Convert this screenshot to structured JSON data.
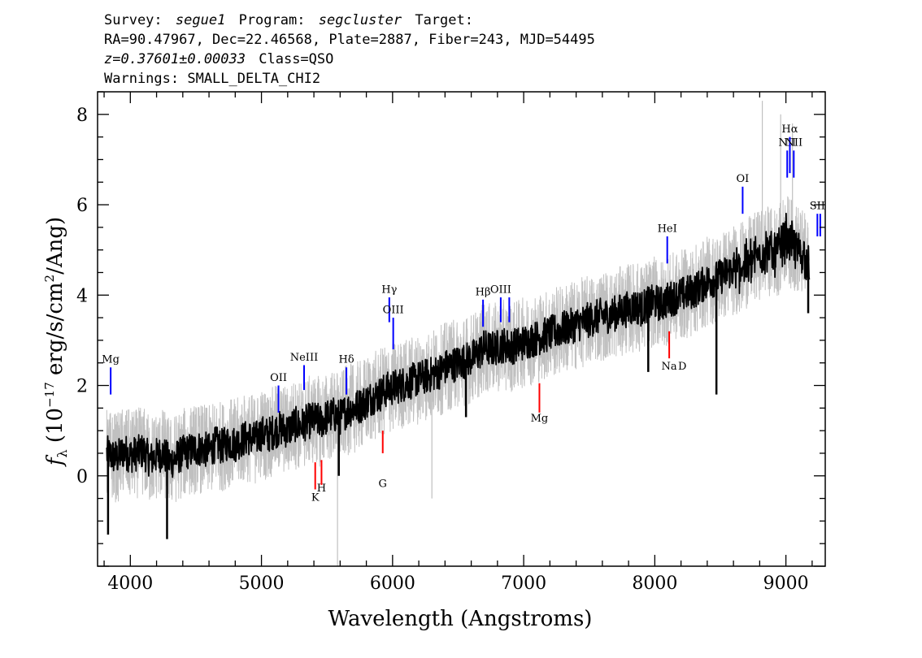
{
  "header": {
    "line1": {
      "survey_key": "Survey:",
      "survey": "segue1",
      "program_key": "Program:",
      "program": "segcluster",
      "target_key": "Target:"
    },
    "line2": "RA=90.47967, Dec=22.46568, Plate=2887, Fiber=243, MJD=54495",
    "line3": {
      "redshift": "z=0.37601±0.00033",
      "class": "Class=QSO"
    },
    "line4": "Warnings: SMALL_DELTA_CHI2"
  },
  "colors": {
    "flux": "#000000",
    "flux_error": "#c0c0c0",
    "emission_line": "#0000ff",
    "absorption_line": "#ff0000",
    "axis": "#000000"
  },
  "chart_data": {
    "type": "line",
    "xlabel": "Wavelength (Angstroms)",
    "ylabel_parts": [
      "f",
      "λ",
      " (10",
      "−17",
      " erg/s/cm",
      "2",
      "/Ang)"
    ],
    "xlim": [
      3750,
      9300
    ],
    "ylim": [
      -2.0,
      8.5
    ],
    "xticks": [
      4000,
      5000,
      6000,
      7000,
      8000,
      9000
    ],
    "xtick_labels": [
      "4000",
      "5000",
      "6000",
      "7000",
      "8000",
      "9000"
    ],
    "yticks": [
      0,
      2,
      4,
      6,
      8
    ],
    "ytick_labels": [
      "0",
      "2",
      "4",
      "6",
      "8"
    ],
    "x_minor_step": 200,
    "y_minor_step": 0.5,
    "grid": false,
    "series": [
      {
        "role": "flux",
        "x": [
          3820,
          3850,
          3900,
          3950,
          4000,
          4050,
          4100,
          4150,
          4200,
          4250,
          4300,
          4350,
          4400,
          4450,
          4500,
          4550,
          4600,
          4650,
          4700,
          4750,
          4800,
          4850,
          4900,
          4950,
          5000,
          5050,
          5100,
          5150,
          5200,
          5250,
          5300,
          5350,
          5400,
          5450,
          5500,
          5550,
          5600,
          5650,
          5700,
          5750,
          5800,
          5850,
          5900,
          5950,
          6000,
          6050,
          6100,
          6150,
          6200,
          6250,
          6300,
          6350,
          6400,
          6450,
          6500,
          6550,
          6600,
          6650,
          6700,
          6750,
          6800,
          6850,
          6900,
          6950,
          7000,
          7050,
          7100,
          7150,
          7200,
          7250,
          7300,
          7350,
          7400,
          7450,
          7500,
          7550,
          7600,
          7650,
          7700,
          7750,
          7800,
          7850,
          7900,
          7950,
          8000,
          8050,
          8100,
          8150,
          8200,
          8250,
          8300,
          8350,
          8400,
          8450,
          8500,
          8550,
          8600,
          8650,
          8700,
          8750,
          8800,
          8850,
          8900,
          8950,
          9000,
          9050,
          9100,
          9150,
          9180
        ],
        "values": [
          0.5,
          0.45,
          0.4,
          0.55,
          0.45,
          0.5,
          0.55,
          0.35,
          0.45,
          0.5,
          0.3,
          0.4,
          0.5,
          0.55,
          0.6,
          0.6,
          0.55,
          0.7,
          0.65,
          0.75,
          0.7,
          0.8,
          0.85,
          0.8,
          0.95,
          0.9,
          1.0,
          1.05,
          1.0,
          1.15,
          1.1,
          1.2,
          1.25,
          1.2,
          1.3,
          1.35,
          1.3,
          1.45,
          1.5,
          1.55,
          1.65,
          1.75,
          1.8,
          1.9,
          1.95,
          2.0,
          2.05,
          2.1,
          2.15,
          2.2,
          2.25,
          2.3,
          2.4,
          2.45,
          2.5,
          2.55,
          2.6,
          2.7,
          2.85,
          2.8,
          2.85,
          2.9,
          2.85,
          2.9,
          2.95,
          3.0,
          3.05,
          3.1,
          3.15,
          3.2,
          3.25,
          3.3,
          3.35,
          3.4,
          3.45,
          3.5,
          3.55,
          3.55,
          3.6,
          3.65,
          3.7,
          3.75,
          3.7,
          3.8,
          3.85,
          3.8,
          3.9,
          3.95,
          4.0,
          4.05,
          4.1,
          4.2,
          4.3,
          4.35,
          4.4,
          4.5,
          4.55,
          4.6,
          4.7,
          4.8,
          4.9,
          5.0,
          4.95,
          5.0,
          5.3,
          5.1,
          5.0,
          4.8,
          4.6
        ],
        "noise": 0.4
      },
      {
        "role": "flux_error",
        "x": [
          3820,
          3850,
          3900,
          3950,
          4000,
          4050,
          4100,
          4150,
          4200,
          4250,
          4300,
          4350,
          4400,
          4450,
          4500,
          4550,
          4600,
          4650,
          4700,
          4750,
          4800,
          4850,
          4900,
          4950,
          5000,
          5050,
          5100,
          5150,
          5200,
          5250,
          5300,
          5350,
          5400,
          5450,
          5500,
          5550,
          5600,
          5650,
          5700,
          5750,
          5800,
          5850,
          5900,
          5950,
          6000,
          6050,
          6100,
          6150,
          6200,
          6250,
          6300,
          6350,
          6400,
          6450,
          6500,
          6550,
          6600,
          6650,
          6700,
          6750,
          6800,
          6850,
          6900,
          6950,
          7000,
          7050,
          7100,
          7150,
          7200,
          7250,
          7300,
          7350,
          7400,
          7450,
          7500,
          7550,
          7600,
          7650,
          7700,
          7750,
          7800,
          7850,
          7900,
          7950,
          8000,
          8050,
          8100,
          8150,
          8200,
          8250,
          8300,
          8350,
          8400,
          8450,
          8500,
          8550,
          8600,
          8650,
          8700,
          8750,
          8800,
          8850,
          8900,
          8950,
          9000,
          9050,
          9100,
          9150,
          9180
        ],
        "values": [
          0.5,
          0.45,
          0.4,
          0.55,
          0.45,
          0.5,
          0.55,
          0.35,
          0.45,
          0.5,
          0.3,
          0.4,
          0.5,
          0.55,
          0.6,
          0.6,
          0.55,
          0.7,
          0.65,
          0.75,
          0.7,
          0.8,
          0.85,
          0.8,
          0.95,
          0.9,
          1.0,
          1.05,
          1.0,
          1.15,
          1.1,
          1.2,
          1.25,
          1.2,
          1.3,
          1.35,
          1.3,
          1.45,
          1.5,
          1.55,
          1.65,
          1.75,
          1.8,
          1.9,
          1.95,
          2.0,
          2.05,
          2.1,
          2.15,
          2.2,
          2.25,
          2.3,
          2.4,
          2.45,
          2.5,
          2.55,
          2.6,
          2.7,
          2.85,
          2.8,
          2.85,
          2.9,
          2.85,
          2.9,
          2.95,
          3.0,
          3.05,
          3.1,
          3.15,
          3.2,
          3.25,
          3.3,
          3.35,
          3.4,
          3.45,
          3.5,
          3.55,
          3.55,
          3.6,
          3.65,
          3.7,
          3.75,
          3.7,
          3.8,
          3.85,
          3.8,
          3.9,
          3.95,
          4.0,
          4.05,
          4.1,
          4.2,
          4.3,
          4.35,
          4.4,
          4.5,
          4.55,
          4.6,
          4.7,
          4.8,
          4.9,
          5.0,
          4.95,
          5.0,
          5.3,
          5.1,
          5.0,
          4.8,
          4.6
        ],
        "noise": 1.0
      }
    ],
    "dips": [
      {
        "x": 3830,
        "y": -1.3
      },
      {
        "x": 4280,
        "y": -1.4
      },
      {
        "x": 5590,
        "y": 0.0
      },
      {
        "x": 6560,
        "y": 1.3
      },
      {
        "x": 7950,
        "y": 2.3
      },
      {
        "x": 8470,
        "y": 1.8
      },
      {
        "x": 9170,
        "y": 3.6
      }
    ],
    "spikes": [
      {
        "x": 5580,
        "y": -2.0
      },
      {
        "x": 6300,
        "y": -0.5
      },
      {
        "x": 8820,
        "y": 8.3
      },
      {
        "x": 8960,
        "y": 8.0
      },
      {
        "x": 9050,
        "y": 7.8
      }
    ],
    "emission_lines": [
      {
        "label": "Mg",
        "x": 3850,
        "y1": 1.8,
        "y2": 2.4,
        "ly": 2.5
      },
      {
        "label": "OII",
        "x": 5130,
        "y1": 1.4,
        "y2": 2.0,
        "ly": 2.1
      },
      {
        "label": "NeIII",
        "x": 5325,
        "y1": 1.9,
        "y2": 2.45,
        "ly": 2.55
      },
      {
        "label": "Hδ",
        "x": 5648,
        "y1": 1.8,
        "y2": 2.4,
        "ly": 2.5
      },
      {
        "label": "Hγ",
        "x": 5975,
        "y1": 3.4,
        "y2": 3.95,
        "ly": 4.05
      },
      {
        "label": "OIII",
        "x": 6005,
        "y1": 2.8,
        "y2": 3.5,
        "ly": 3.6
      },
      {
        "label": "Hβ",
        "x": 6690,
        "y1": 3.3,
        "y2": 3.9,
        "ly": 4.0
      },
      {
        "label": "OIII",
        "x": 6825,
        "y1": 3.4,
        "y2": 3.95,
        "ly": 4.05
      },
      {
        "label": "OIII",
        "x": 6890,
        "y1": 3.4,
        "y2": 3.95,
        "ly": -99
      },
      {
        "label": "HeI",
        "x": 8095,
        "y1": 4.7,
        "y2": 5.3,
        "ly": 5.4
      },
      {
        "label": "OI",
        "x": 8670,
        "y1": 5.8,
        "y2": 6.4,
        "ly": 6.5
      },
      {
        "label": "NII",
        "x": 9010,
        "y1": 6.6,
        "y2": 7.2,
        "ly": 7.3
      },
      {
        "label": "Hα",
        "x": 9030,
        "y1": 6.7,
        "y2": 7.5,
        "ly": 7.6
      },
      {
        "label": "NII",
        "x": 9060,
        "y1": 6.6,
        "y2": 7.2,
        "ly": 7.3
      },
      {
        "label": "SII",
        "x": 9240,
        "y1": 5.3,
        "y2": 5.8,
        "ly": 5.9
      },
      {
        "label": "SII",
        "x": 9262,
        "y1": 5.3,
        "y2": 5.8,
        "ly": -99
      }
    ],
    "absorption_lines": [
      {
        "label": "K",
        "x": 5410,
        "y1": -0.3,
        "y2": 0.3,
        "ly": -0.55
      },
      {
        "label": "H",
        "x": 5458,
        "y1": -0.2,
        "y2": 0.35,
        "ly": -0.35
      },
      {
        "label": "G",
        "x": 5925,
        "y1": 0.5,
        "y2": 1.0,
        "ly": -0.25
      },
      {
        "label": "Mg",
        "x": 7120,
        "y1": 1.4,
        "y2": 2.05,
        "ly": 1.2
      },
      {
        "label": "Na",
        "x": 8110,
        "y1": 2.6,
        "y2": 3.2,
        "ly": 2.35
      },
      {
        "label": "D",
        "x": 8210,
        "y1": -99,
        "y2": -99,
        "ly": 2.35
      }
    ]
  }
}
